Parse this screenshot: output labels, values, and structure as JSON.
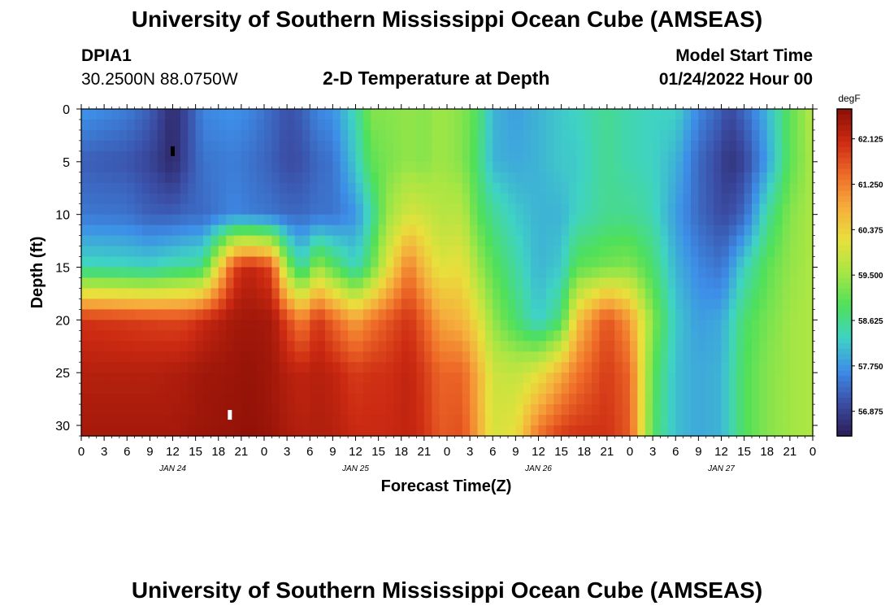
{
  "header": {
    "title": "University of Southern Mississippi Ocean Cube (AMSEAS)",
    "station_id": "DPIA1",
    "station_coords": "30.2500N  88.0750W",
    "model_start_label": "Model Start Time",
    "model_start_value": "01/24/2022 Hour 00"
  },
  "footer": {
    "title": "University of Southern Mississippi Ocean Cube (AMSEAS)"
  },
  "colors": {
    "colormap": [
      "#2b1b55",
      "#3b4ea6",
      "#3d8ee8",
      "#3fd3c4",
      "#4fe05a",
      "#a8e644",
      "#e8e03c",
      "#f6ad3c",
      "#ee6a28",
      "#cc2a12",
      "#8c0f06"
    ]
  },
  "chart_data": {
    "type": "heatmap",
    "title": "2-D Temperature at Depth",
    "xlabel": "Forecast Time(Z)",
    "ylabel": "Depth (ft)",
    "x_tick_labels": [
      "0",
      "3",
      "6",
      "9",
      "12",
      "15",
      "18",
      "21",
      "0",
      "3",
      "6",
      "9",
      "12",
      "15",
      "18",
      "21",
      "0",
      "3",
      "6",
      "9",
      "12",
      "15",
      "18",
      "21",
      "0",
      "3",
      "6",
      "9",
      "12",
      "15",
      "18",
      "21",
      "0"
    ],
    "date_labels": [
      {
        "label": "JAN 24",
        "hour": 12
      },
      {
        "label": "JAN 25",
        "hour": 36
      },
      {
        "label": "JAN 26",
        "hour": 60
      },
      {
        "label": "JAN 27",
        "hour": 84
      }
    ],
    "xlim_hours": [
      0,
      96
    ],
    "ylim_ft": [
      0,
      31
    ],
    "y_ticks": [
      0,
      5,
      10,
      15,
      20,
      25,
      30
    ],
    "colorbar": {
      "unit": "degF",
      "range": [
        56.4,
        62.7
      ],
      "ticks": [
        "62.125",
        "61.250",
        "60.375",
        "59.500",
        "58.625",
        "57.750",
        "56.875"
      ],
      "tick_values": [
        62.125,
        61.25,
        60.375,
        59.5,
        58.625,
        57.75,
        56.875
      ]
    },
    "markers": [
      {
        "type": "min",
        "hour": 12,
        "depth_ft": 4,
        "color": "#000000"
      },
      {
        "type": "max",
        "hour": 19.5,
        "depth_ft": 29,
        "color": "#ffffff"
      }
    ],
    "profiles": {
      "depths_ft": [
        0,
        5,
        10,
        15,
        20,
        25,
        31
      ],
      "times_h": [
        0,
        6,
        9,
        12,
        14,
        16,
        20,
        22,
        25,
        27,
        29,
        31,
        33,
        36,
        38,
        40,
        43,
        45,
        47,
        50,
        52,
        54,
        57,
        60,
        63,
        65,
        69,
        72,
        75,
        78,
        81,
        84,
        85,
        87,
        90,
        93,
        96
      ],
      "temperature_degF": [
        [
          57.75,
          57.2,
          57.45,
          58.4,
          62.0,
          62.3,
          62.45
        ],
        [
          57.5,
          57.1,
          57.4,
          58.35,
          61.9,
          62.3,
          62.45
        ],
        [
          57.2,
          56.9,
          57.2,
          58.3,
          61.85,
          62.3,
          62.45
        ],
        [
          56.6,
          56.55,
          57.2,
          58.5,
          61.8,
          62.35,
          62.45
        ],
        [
          57.0,
          57.0,
          57.3,
          58.55,
          61.85,
          62.4,
          62.5
        ],
        [
          57.6,
          57.4,
          57.3,
          58.7,
          62.1,
          62.5,
          62.55
        ],
        [
          57.7,
          57.5,
          57.6,
          61.8,
          62.45,
          62.55,
          62.6
        ],
        [
          57.6,
          57.4,
          57.5,
          62.2,
          62.5,
          62.6,
          62.65
        ],
        [
          57.3,
          57.2,
          57.4,
          61.8,
          62.45,
          62.5,
          62.55
        ],
        [
          57.05,
          57.0,
          57.3,
          59.4,
          61.8,
          62.3,
          62.4
        ],
        [
          57.2,
          57.05,
          57.3,
          58.4,
          61.2,
          62.2,
          62.3
        ],
        [
          57.6,
          57.3,
          57.4,
          59.5,
          62.0,
          62.3,
          62.35
        ],
        [
          57.7,
          57.4,
          57.4,
          59.0,
          61.5,
          62.2,
          62.3
        ],
        [
          58.4,
          58.2,
          57.7,
          58.3,
          60.9,
          61.9,
          62.1
        ],
        [
          59.3,
          59.0,
          58.4,
          59.0,
          61.3,
          62.0,
          62.1
        ],
        [
          59.3,
          59.2,
          59.4,
          60.0,
          61.6,
          62.0,
          62.1
        ],
        [
          59.4,
          59.4,
          60.0,
          61.3,
          62.0,
          62.2,
          62.2
        ],
        [
          59.3,
          59.3,
          59.9,
          60.6,
          61.5,
          61.9,
          62.0
        ],
        [
          59.5,
          59.5,
          59.7,
          60.1,
          60.9,
          61.5,
          61.6
        ],
        [
          59.3,
          59.3,
          59.7,
          60.2,
          60.7,
          61.5,
          61.7
        ],
        [
          58.9,
          58.8,
          59.0,
          59.5,
          60.2,
          60.8,
          60.9
        ],
        [
          58.0,
          58.0,
          58.6,
          59.0,
          59.4,
          59.9,
          60.0
        ],
        [
          57.8,
          57.9,
          58.2,
          58.5,
          58.8,
          59.8,
          60.2
        ],
        [
          58.0,
          58.0,
          58.0,
          58.0,
          58.2,
          60.1,
          61.4
        ],
        [
          58.2,
          58.2,
          58.0,
          58.2,
          58.8,
          60.8,
          61.9
        ],
        [
          58.3,
          58.2,
          58.3,
          59.0,
          60.5,
          61.3,
          62.0
        ],
        [
          58.6,
          58.6,
          58.6,
          59.2,
          61.7,
          61.9,
          62.0
        ],
        [
          58.4,
          58.4,
          58.6,
          59.3,
          61.0,
          61.5,
          61.6
        ],
        [
          58.3,
          58.3,
          58.4,
          58.8,
          59.3,
          59.0,
          58.9
        ],
        [
          58.3,
          58.0,
          57.8,
          58.0,
          58.2,
          58.1,
          58.1
        ],
        [
          57.6,
          57.3,
          57.3,
          57.6,
          57.8,
          57.9,
          57.9
        ],
        [
          57.2,
          56.9,
          57.0,
          57.4,
          57.9,
          58.0,
          58.0
        ],
        [
          56.95,
          56.7,
          57.0,
          57.7,
          58.2,
          58.3,
          58.3
        ],
        [
          57.3,
          56.9,
          57.3,
          58.3,
          58.8,
          58.9,
          58.9
        ],
        [
          58.0,
          57.8,
          58.5,
          59.0,
          59.2,
          59.3,
          59.3
        ],
        [
          59.0,
          59.0,
          59.3,
          59.4,
          59.5,
          59.5,
          59.5
        ],
        [
          59.7,
          59.6,
          59.6,
          59.6,
          59.6,
          59.6,
          59.6
        ]
      ]
    }
  }
}
